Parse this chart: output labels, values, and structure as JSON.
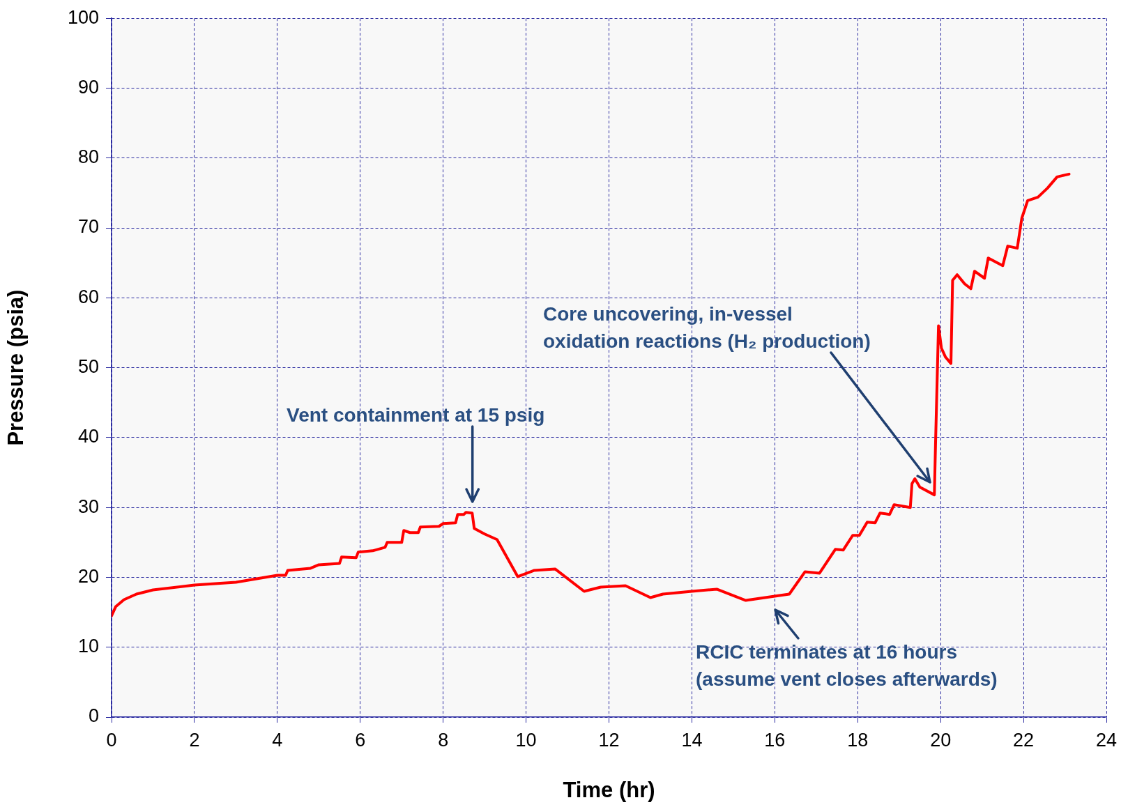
{
  "chart_data": {
    "type": "line",
    "xlabel": "Time (hr)",
    "ylabel": "Pressure (psia)",
    "x": [
      0,
      0.1,
      0.3,
      0.6,
      1,
      2,
      3,
      3.5,
      4,
      4.2,
      4.25,
      4.8,
      5,
      5.5,
      5.55,
      5.9,
      5.95,
      6.3,
      6.6,
      6.65,
      7,
      7.05,
      7.2,
      7.4,
      7.45,
      7.9,
      8,
      8.3,
      8.35,
      8.5,
      8.55,
      8.7,
      8.75,
      9,
      9.3,
      9.8,
      10.2,
      10.7,
      11.4,
      11.8,
      12.4,
      13,
      13.3,
      14,
      14.6,
      15.3,
      16,
      16.35,
      16.73,
      17.08,
      17.46,
      17.65,
      17.88,
      18.04,
      18.23,
      18.42,
      18.54,
      18.77,
      18.88,
      19.27,
      19.31,
      19.38,
      19.5,
      19.85,
      19.88,
      19.95,
      20.02,
      20.12,
      20.25,
      20.29,
      20.4,
      20.58,
      20.73,
      20.82,
      21.06,
      21.15,
      21.5,
      21.62,
      21.85,
      21.96,
      22.1,
      22.35,
      22.58,
      22.81,
      23.1
    ],
    "series": [
      {
        "color": "#ff0000",
        "values": [
          14.5,
          15.8,
          16.8,
          17.6,
          18.2,
          18.9,
          19.3,
          19.8,
          20.3,
          20.3,
          21,
          21.3,
          21.8,
          22,
          22.9,
          22.8,
          23.6,
          23.8,
          24.3,
          25,
          25,
          26.7,
          26.4,
          26.4,
          27.2,
          27.3,
          27.7,
          27.8,
          29,
          29,
          29.3,
          29.2,
          27,
          26.2,
          25.4,
          20.1,
          21,
          21.2,
          18,
          18.6,
          18.8,
          17.1,
          17.6,
          18,
          18.3,
          16.7,
          17.3,
          17.6,
          20.8,
          20.6,
          24,
          23.9,
          26,
          26,
          27.9,
          27.8,
          29.2,
          29,
          30.4,
          30,
          33.4,
          34.1,
          32.9,
          31.8,
          39.5,
          56,
          52.8,
          51.5,
          50.6,
          62.5,
          63.3,
          62,
          61.3,
          63.8,
          62.8,
          65.7,
          64.6,
          67.4,
          67.1,
          71.4,
          73.9,
          74.4,
          75.7,
          77.3,
          77.7
        ]
      }
    ],
    "xlim": [
      0,
      24
    ],
    "xticks": [
      0,
      2,
      4,
      6,
      8,
      10,
      12,
      14,
      16,
      18,
      20,
      22,
      24
    ],
    "ylim": [
      0,
      100
    ],
    "yticks": [
      0,
      10,
      20,
      30,
      40,
      50,
      60,
      70,
      80,
      90,
      100
    ],
    "grid": true,
    "legend": false,
    "marker": "none",
    "line_style": "solid",
    "annotations": [
      "Vent containment at 15 psig",
      "Core uncovering, in-vessel\noxidation reactions (H₂ production)",
      "RCIC terminates at 16 hours\n(assume vent closes afterwards)"
    ]
  }
}
